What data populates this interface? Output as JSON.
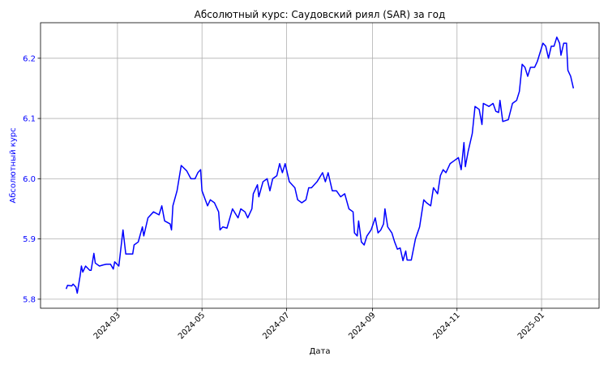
{
  "chart_data": {
    "type": "line",
    "title": "Абсолютный курс: Саудовский риял (SAR) за год",
    "xlabel": "Дата",
    "ylabel": "Абсолютный курс",
    "x": [
      23,
      24,
      27,
      28,
      30,
      31,
      33,
      34,
      35,
      37,
      40,
      41,
      43,
      44,
      47,
      50,
      52,
      55,
      57,
      58,
      61,
      64,
      66,
      71,
      72,
      75,
      78,
      79,
      82,
      86,
      90,
      92,
      94,
      98,
      99,
      100,
      103,
      106,
      110,
      113,
      116,
      118,
      120,
      121,
      125,
      127,
      130,
      133,
      134,
      136,
      139,
      143,
      147,
      149,
      152,
      154,
      157,
      158,
      161,
      162,
      165,
      168,
      170,
      172,
      175,
      177,
      179,
      181,
      184,
      188,
      190,
      193,
      196,
      198,
      200,
      204,
      208,
      210,
      212,
      215,
      218,
      221,
      224,
      227,
      230,
      231,
      233,
      234,
      236,
      238,
      240,
      243,
      246,
      248,
      250,
      252,
      253,
      255,
      258,
      260,
      262,
      264,
      266,
      268,
      269,
      272,
      275,
      278,
      281,
      283,
      286,
      288,
      291,
      293,
      295,
      297,
      300,
      303,
      306,
      308,
      310,
      311,
      313,
      316,
      318,
      321,
      323,
      324,
      328,
      331,
      333,
      335,
      336,
      338,
      342,
      345,
      348,
      350,
      352,
      354,
      356,
      358,
      361,
      363,
      365,
      367,
      369,
      371,
      373,
      375,
      377,
      379,
      380,
      382,
      384,
      385,
      387,
      389
    ],
    "series": [
      {
        "name": "SAR",
        "color": "#0000ff",
        "values": [
          5.817,
          5.823,
          5.822,
          5.825,
          5.82,
          5.81,
          5.838,
          5.855,
          5.845,
          5.855,
          5.848,
          5.848,
          5.876,
          5.86,
          5.855,
          5.857,
          5.858,
          5.858,
          5.85,
          5.862,
          5.855,
          5.915,
          5.875,
          5.875,
          5.89,
          5.895,
          5.92,
          5.905,
          5.935,
          5.945,
          5.94,
          5.955,
          5.93,
          5.925,
          5.915,
          5.955,
          5.98,
          6.022,
          6.013,
          6.0,
          6.0,
          6.01,
          6.015,
          5.98,
          5.955,
          5.965,
          5.96,
          5.945,
          5.915,
          5.92,
          5.918,
          5.95,
          5.935,
          5.95,
          5.945,
          5.935,
          5.95,
          5.975,
          5.99,
          5.97,
          5.995,
          6.0,
          5.98,
          6.0,
          6.005,
          6.025,
          6.01,
          6.025,
          5.995,
          5.985,
          5.965,
          5.96,
          5.965,
          5.985,
          5.985,
          5.995,
          6.01,
          5.995,
          6.01,
          5.98,
          5.98,
          5.97,
          5.975,
          5.95,
          5.945,
          5.91,
          5.905,
          5.93,
          5.895,
          5.89,
          5.905,
          5.915,
          5.935,
          5.91,
          5.915,
          5.925,
          5.95,
          5.92,
          5.91,
          5.895,
          5.883,
          5.885,
          5.864,
          5.88,
          5.865,
          5.865,
          5.9,
          5.92,
          5.965,
          5.96,
          5.955,
          5.985,
          5.975,
          6.005,
          6.015,
          6.01,
          6.025,
          6.03,
          6.035,
          6.015,
          6.06,
          6.02,
          6.045,
          6.075,
          6.12,
          6.115,
          6.09,
          6.125,
          6.12,
          6.125,
          6.112,
          6.11,
          6.13,
          6.095,
          6.098,
          6.125,
          6.13,
          6.145,
          6.19,
          6.185,
          6.17,
          6.185,
          6.185,
          6.195,
          6.21,
          6.225,
          6.22,
          6.2,
          6.22,
          6.22,
          6.235,
          6.225,
          6.205,
          6.225,
          6.225,
          6.18,
          6.17,
          6.15
        ]
      }
    ],
    "xlim": [
      4.5,
      407.5
    ],
    "xticks": [
      {
        "value": 60,
        "label": "2024-03"
      },
      {
        "value": 121,
        "label": "2024-05"
      },
      {
        "value": 182,
        "label": "2024-07"
      },
      {
        "value": 244,
        "label": "2024-09"
      },
      {
        "value": 305,
        "label": "2024-11"
      },
      {
        "value": 366,
        "label": "2025-01"
      }
    ],
    "ylim": [
      5.785,
      6.259
    ],
    "yticks": [
      5.8,
      5.9,
      {
        "value": 6,
        "label": "6.0"
      },
      6.1,
      6.2
    ],
    "grid": true,
    "ytick_color": "#0000ff",
    "ylabel_color": "#0000ff"
  }
}
